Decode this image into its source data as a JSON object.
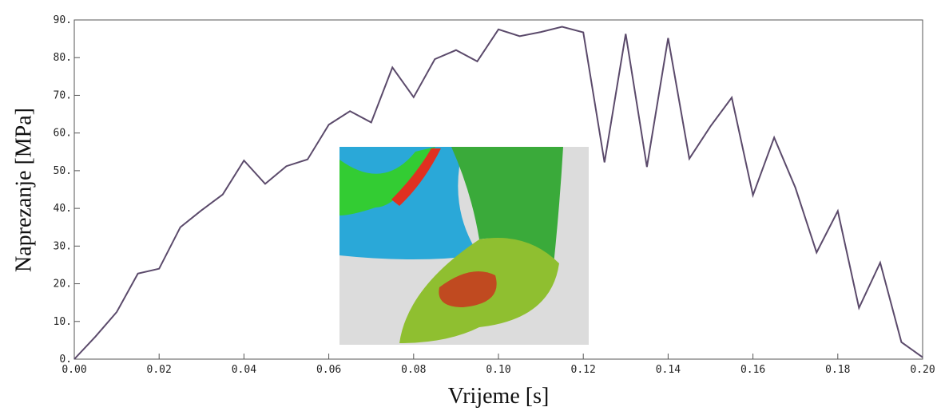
{
  "chart_data": {
    "type": "line",
    "xlabel": "Vrijeme [s]",
    "ylabel": "Naprezanje [MPa]",
    "x": [
      0,
      0.005,
      0.01,
      0.015,
      0.02,
      0.025,
      0.03,
      0.035,
      0.04,
      0.045,
      0.05,
      0.055,
      0.06,
      0.065,
      0.07,
      0.075,
      0.08,
      0.085,
      0.09,
      0.095,
      0.1,
      0.105,
      0.11,
      0.115,
      0.12,
      0.125,
      0.13,
      0.135,
      0.14,
      0.145,
      0.15,
      0.155,
      0.16,
      0.165,
      0.17,
      0.175,
      0.18,
      0.185,
      0.19,
      0.195,
      0.2
    ],
    "series": [
      {
        "color": "#5b4a6b",
        "values": [
          0,
          6,
          12.5,
          22.7,
          24,
          35,
          39.5,
          43.7,
          52.7,
          46.5,
          51.2,
          53,
          62.2,
          65.8,
          62.8,
          77.4,
          69.5,
          79.6,
          82,
          79,
          87.5,
          85.7,
          86.8,
          88.2,
          86.7,
          52.2,
          86.3,
          51,
          85.2,
          53.2,
          61.8,
          69.4,
          43.5,
          58.8,
          45.5,
          28.3,
          39.3,
          13.6,
          25.6,
          4.5,
          0.5
        ]
      }
    ],
    "xlim": [
      0,
      0.2
    ],
    "xticks": [
      {
        "value": 0,
        "label": "0.00"
      },
      {
        "value": 0.02,
        "label": "0.02"
      },
      {
        "value": 0.04,
        "label": "0.04"
      },
      {
        "value": 0.06,
        "label": "0.06"
      },
      {
        "value": 0.08,
        "label": "0.08"
      },
      {
        "value": 0.1,
        "label": "0.10"
      },
      {
        "value": 0.12,
        "label": "0.12"
      },
      {
        "value": 0.14,
        "label": "0.14"
      },
      {
        "value": 0.16,
        "label": "0.16"
      },
      {
        "value": 0.18,
        "label": "0.18"
      },
      {
        "value": 0.2,
        "label": "0.20"
      }
    ],
    "ylim": [
      0,
      90
    ],
    "yticks": [
      {
        "value": 0,
        "label": "0."
      },
      {
        "value": 10,
        "label": "10."
      },
      {
        "value": 20,
        "label": "20."
      },
      {
        "value": 30,
        "label": "30."
      },
      {
        "value": 40,
        "label": "40."
      },
      {
        "value": 50,
        "label": "50."
      },
      {
        "value": 60,
        "label": "60."
      },
      {
        "value": 70,
        "label": "70."
      },
      {
        "value": 80,
        "label": "80."
      },
      {
        "value": 90,
        "label": "90."
      }
    ]
  }
}
